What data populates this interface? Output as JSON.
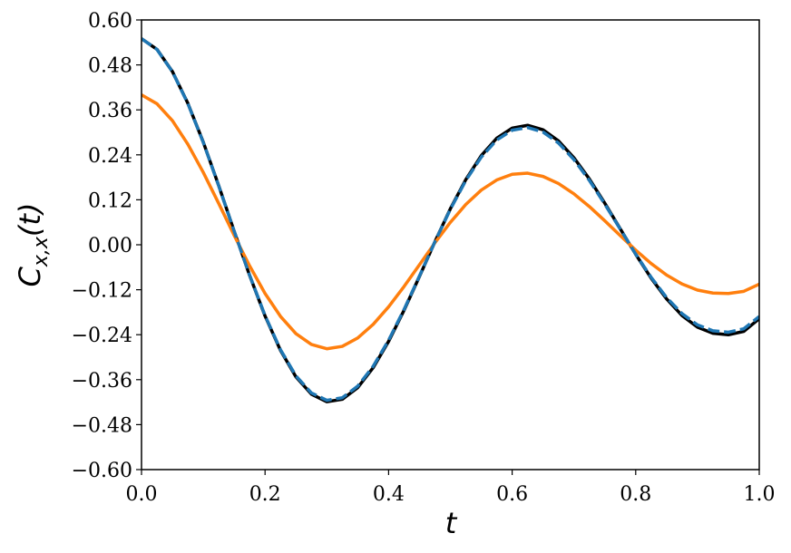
{
  "chart_data": {
    "type": "line",
    "xlabel": "t",
    "ylabel": [
      "C",
      "x,x",
      "(t)"
    ],
    "x": [
      0,
      0.025,
      0.05,
      0.075,
      0.1,
      0.125,
      0.15,
      0.175,
      0.2,
      0.225,
      0.25,
      0.275,
      0.3,
      0.325,
      0.35,
      0.375,
      0.4,
      0.425,
      0.45,
      0.475,
      0.5,
      0.525,
      0.55,
      0.575,
      0.6,
      0.625,
      0.65,
      0.675,
      0.7,
      0.725,
      0.75,
      0.775,
      0.8,
      0.825,
      0.85,
      0.875,
      0.9,
      0.925,
      0.95,
      0.975,
      1.0
    ],
    "series": [
      {
        "color": "#000000",
        "style": "solid",
        "values": [
          0.55,
          0.5216,
          0.4625,
          0.3777,
          0.2738,
          0.1577,
          0.0363,
          -0.0817,
          -0.1901,
          -0.2819,
          -0.3526,
          -0.3986,
          -0.4189,
          -0.4123,
          -0.3813,
          -0.328,
          -0.2578,
          -0.1748,
          -0.0843,
          0.0082,
          0.0962,
          0.1741,
          0.2379,
          0.2843,
          0.3114,
          0.3188,
          0.3068,
          0.2771,
          0.2322,
          0.1756,
          0.1109,
          0.0426,
          -0.0254,
          -0.089,
          -0.1445,
          -0.1888,
          -0.2198,
          -0.2361,
          -0.2402,
          -0.231,
          -0.1973
        ]
      },
      {
        "color": "#ff7f0e",
        "style": "solid",
        "values": [
          0.4,
          0.3764,
          0.3312,
          0.2684,
          0.1931,
          0.1103,
          0.0252,
          -0.0563,
          -0.13,
          -0.1912,
          -0.2373,
          -0.2661,
          -0.2776,
          -0.2711,
          -0.2487,
          -0.2124,
          -0.1656,
          -0.1114,
          -0.0533,
          0.0052,
          0.0599,
          0.1076,
          0.1459,
          0.1729,
          0.188,
          0.191,
          0.1824,
          0.1634,
          0.1359,
          0.102,
          0.0639,
          0.0244,
          -0.0144,
          -0.0501,
          -0.0807,
          -0.1047,
          -0.1209,
          -0.1289,
          -0.1301,
          -0.1242,
          -0.1052
        ]
      },
      {
        "color": "#1f77b4",
        "style": "dashed",
        "values": [
          0.55,
          0.5212,
          0.4618,
          0.3769,
          0.273,
          0.1571,
          0.0361,
          -0.0813,
          -0.189,
          -0.28,
          -0.35,
          -0.3953,
          -0.4151,
          -0.4083,
          -0.3773,
          -0.3243,
          -0.2547,
          -0.1726,
          -0.0832,
          0.0081,
          0.0948,
          0.1714,
          0.234,
          0.2794,
          0.3058,
          0.3128,
          0.3008,
          0.2715,
          0.2273,
          0.1718,
          0.1084,
          0.0416,
          -0.0248,
          -0.0868,
          -0.1408,
          -0.1838,
          -0.2139,
          -0.2295,
          -0.2334,
          -0.2242,
          -0.1914
        ]
      }
    ],
    "xlim": [
      0,
      1
    ],
    "ylim": [
      -0.6,
      0.6
    ],
    "xticks": [
      {
        "value": 0,
        "label": "0.0"
      },
      {
        "value": 0.2,
        "label": "0.2"
      },
      {
        "value": 0.4,
        "label": "0.4"
      },
      {
        "value": 0.6,
        "label": "0.6"
      },
      {
        "value": 0.8,
        "label": "0.8"
      },
      {
        "value": 1,
        "label": "1.0"
      }
    ],
    "yticks": [
      {
        "value": -0.6,
        "label": "−0.60"
      },
      {
        "value": -0.48,
        "label": "−0.48"
      },
      {
        "value": -0.36,
        "label": "−0.36"
      },
      {
        "value": -0.24,
        "label": "−0.24"
      },
      {
        "value": -0.12,
        "label": "−0.12"
      },
      {
        "value": 0,
        "label": "0.00"
      },
      {
        "value": 0.12,
        "label": "0.12"
      },
      {
        "value": 0.24,
        "label": "0.24"
      },
      {
        "value": 0.36,
        "label": "0.36"
      },
      {
        "value": 0.48,
        "label": "0.48"
      },
      {
        "value": 0.6,
        "label": "0.60"
      }
    ],
    "grid": false
  }
}
